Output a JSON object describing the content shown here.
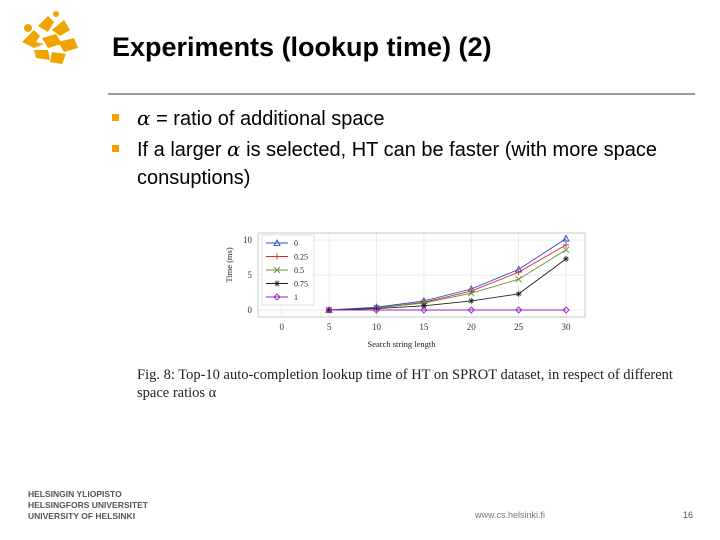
{
  "slide": {
    "title": "Experiments (lookup time) (2)",
    "bullets": [
      {
        "pre": "",
        "alpha": "α",
        "post": " = ratio of additional space"
      },
      {
        "pre": "If a larger ",
        "alpha": "α",
        "post": " is selected, HT can be faster (with more space consuptions)"
      }
    ],
    "caption": "Fig. 8: Top-10 auto-completion lookup time of HT on SPROT dataset, in respect of different space ratios α",
    "university": [
      "HELSINGIN YLIOPISTO",
      "HELSINGFORS UNIVERSITET",
      "UNIVERSITY OF HELSINKI"
    ],
    "footer_url": "www.cs.helsinki.fi",
    "page_number": "16"
  },
  "chart_data": {
    "type": "line",
    "xlabel": "Search string length",
    "ylabel": "Time (ms)",
    "x": [
      5,
      10,
      15,
      20,
      25,
      30
    ],
    "xticks": [
      0,
      5,
      10,
      15,
      20,
      25,
      30
    ],
    "yticks": [
      0,
      5,
      10
    ],
    "xlim": [
      -2.5,
      32
    ],
    "ylim": [
      -1,
      11
    ],
    "legend_position": "top-left",
    "series": [
      {
        "name": "0",
        "color": "#2b4bd4",
        "marker": "triangle",
        "values": [
          0,
          0.4,
          1.3,
          3.0,
          5.8,
          10.2
        ]
      },
      {
        "name": "0.25",
        "color": "#d42b2b",
        "marker": "plus",
        "values": [
          0,
          0.3,
          1.1,
          2.7,
          5.4,
          9.3
        ]
      },
      {
        "name": "0.5",
        "color": "#6b8e3a",
        "marker": "x",
        "values": [
          0,
          0.3,
          1.0,
          2.4,
          4.4,
          8.6
        ]
      },
      {
        "name": "0.75",
        "color": "#222222",
        "marker": "star",
        "values": [
          0,
          0.2,
          0.6,
          1.3,
          2.3,
          7.3
        ]
      },
      {
        "name": "1",
        "color": "#a020c0",
        "marker": "diamond",
        "values": [
          0,
          0,
          0,
          0,
          0,
          0
        ]
      }
    ]
  }
}
